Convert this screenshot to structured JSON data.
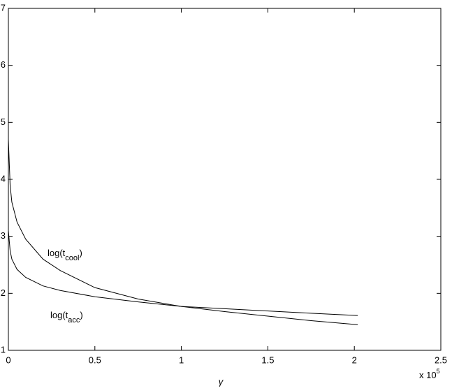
{
  "chart_data": {
    "type": "line",
    "x_label": "γ",
    "x_multiplier": "x 10",
    "x_multiplier_exp": "5",
    "x": [
      0,
      0.01,
      0.02,
      0.05,
      0.1,
      0.2,
      0.3,
      0.5,
      0.75,
      1.0,
      1.25,
      1.5,
      1.75,
      2.02
    ],
    "series": [
      {
        "name": "cool",
        "color": "#000000",
        "values": [
          4.7,
          3.9,
          3.6,
          3.25,
          2.95,
          2.6,
          2.4,
          2.1,
          1.9,
          1.77,
          1.68,
          1.6,
          1.52,
          1.45
        ]
      },
      {
        "name": "acc",
        "color": "#000000",
        "values": [
          3.1,
          2.75,
          2.6,
          2.42,
          2.28,
          2.13,
          2.05,
          1.94,
          1.85,
          1.77,
          1.73,
          1.69,
          1.65,
          1.61
        ]
      }
    ],
    "annotations": [
      {
        "text": "log(t",
        "sub": "cool",
        "close": ")"
      },
      {
        "text": "log(t",
        "sub": "acc",
        "close": ")"
      }
    ],
    "xlim": [
      0,
      2.5
    ],
    "xticks": [
      0,
      0.5,
      1,
      1.5,
      2,
      2.5
    ],
    "ylim": [
      1,
      7
    ],
    "yticks": [
      1,
      2,
      3,
      4,
      5,
      6,
      7
    ],
    "grid": false
  }
}
